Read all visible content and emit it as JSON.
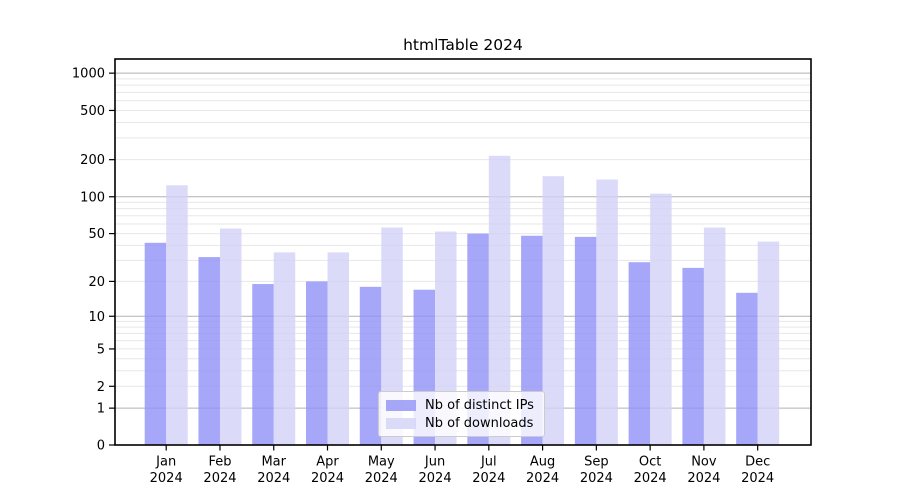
{
  "chart_data": {
    "type": "bar",
    "title": "htmlTable 2024",
    "year": "2024",
    "months": [
      "Jan",
      "Feb",
      "Mar",
      "Apr",
      "May",
      "Jun",
      "Jul",
      "Aug",
      "Sep",
      "Oct",
      "Nov",
      "Dec"
    ],
    "categories": [
      "Jan 2024",
      "Feb 2024",
      "Mar 2024",
      "Apr 2024",
      "May 2024",
      "Jun 2024",
      "Jul 2024",
      "Aug 2024",
      "Sep 2024",
      "Oct 2024",
      "Nov 2024",
      "Dec 2024"
    ],
    "series": [
      {
        "name": "Nb of distinct IPs",
        "color": "#9191f7",
        "values": [
          42,
          32,
          19,
          20,
          18,
          17,
          50,
          48,
          47,
          29,
          26,
          16
        ]
      },
      {
        "name": "Nb of downloads",
        "color": "#d2d2f8",
        "values": [
          124,
          55,
          35,
          35,
          56,
          52,
          215,
          147,
          138,
          106,
          56,
          43
        ]
      }
    ],
    "yscale": "log1p",
    "ylim": [
      0,
      1300
    ],
    "yticks": [
      0,
      1,
      2,
      5,
      10,
      20,
      50,
      100,
      200,
      500,
      1000
    ],
    "grid": {
      "major": [
        1,
        10,
        100,
        1000
      ],
      "minor": [
        2,
        3,
        4,
        5,
        6,
        7,
        8,
        9,
        20,
        30,
        40,
        50,
        60,
        70,
        80,
        90,
        200,
        300,
        400,
        500,
        600,
        700,
        800,
        900
      ],
      "major_color": "#b2b2b2",
      "minor_color": "#e7e7e7"
    },
    "legend": {
      "position": "lower center"
    },
    "axis_color": "#000000",
    "bar_opacity": 0.8
  }
}
